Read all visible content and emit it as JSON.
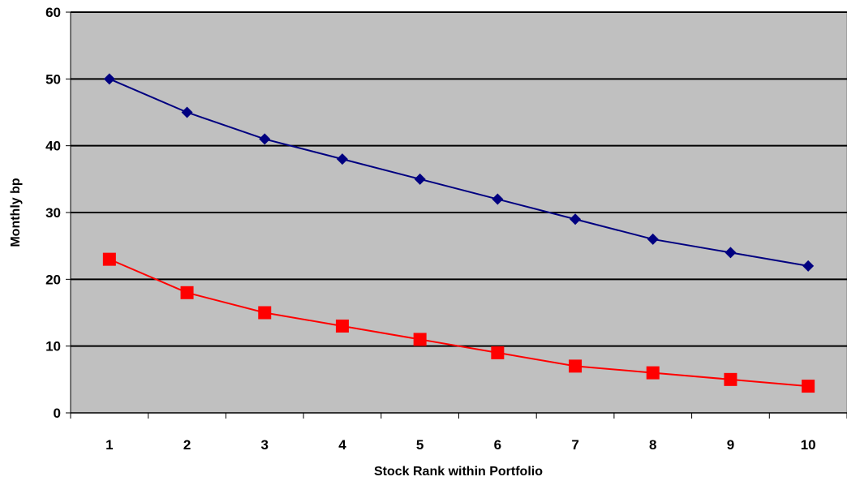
{
  "chart_data": {
    "type": "line",
    "title": "",
    "xlabel": "Stock Rank within Portfolio",
    "ylabel": "Monthly bp",
    "categories": [
      "1",
      "2",
      "3",
      "4",
      "5",
      "6",
      "7",
      "8",
      "9",
      "10"
    ],
    "ylim": [
      0,
      60
    ],
    "yticks": [
      "0",
      "10",
      "20",
      "30",
      "40",
      "50",
      "60"
    ],
    "grid": true,
    "legend": "none",
    "plot_background": "#c0c0c0",
    "series": [
      {
        "values": [
          50,
          45,
          41,
          38,
          35,
          32,
          29,
          26,
          24,
          22
        ],
        "color": "#000080",
        "marker": "diamond"
      },
      {
        "values": [
          23,
          18,
          15,
          13,
          11,
          9,
          7,
          6,
          5,
          4
        ],
        "color": "#ff0000",
        "marker": "square"
      }
    ]
  }
}
